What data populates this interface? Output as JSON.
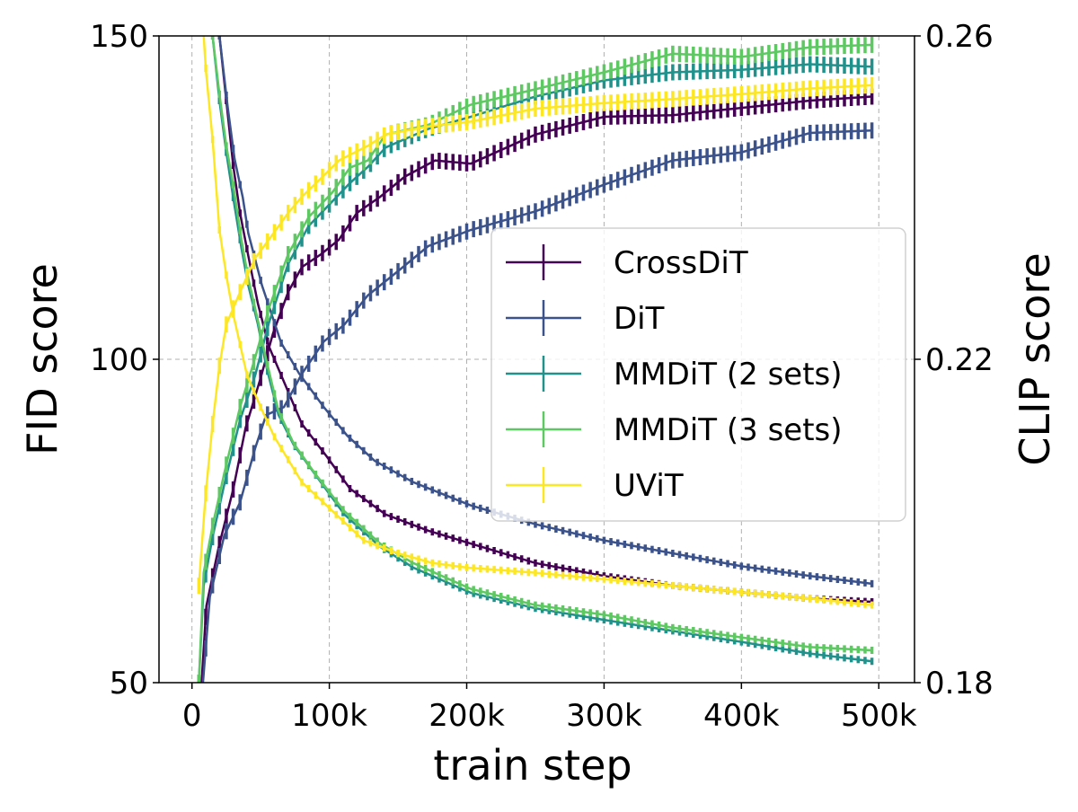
{
  "chart_data": {
    "type": "line",
    "title": "",
    "xlabel": "train step",
    "ylabel_left": "FID score",
    "ylabel_right": "CLIP score",
    "xlim": [
      -24000,
      526000
    ],
    "ylim_left": [
      50,
      150
    ],
    "ylim_right": [
      0.18,
      0.26
    ],
    "x_ticks": [
      0,
      100000,
      200000,
      300000,
      400000,
      500000
    ],
    "x_tick_labels": [
      "0",
      "100k",
      "200k",
      "300k",
      "400k",
      "500k"
    ],
    "y_left_ticks": [
      50,
      100,
      150
    ],
    "y_left_tick_labels": [
      "50",
      "100",
      "150"
    ],
    "y_right_ticks": [
      0.18,
      0.22,
      0.26
    ],
    "y_right_tick_labels": [
      "0.18",
      "0.22",
      "0.26"
    ],
    "grid": true,
    "error_bars": true,
    "legend_position": "center-right",
    "series": [
      {
        "name": "CrossDiT",
        "color": "#440154",
        "fid": {
          "x": [
            20,
            25,
            30,
            35,
            41,
            48,
            56,
            68,
            80,
            98,
            115,
            141,
            172,
            203,
            250,
            300,
            350,
            400,
            450,
            495
          ],
          "y": [
            150,
            140,
            130,
            122.6,
            116,
            108.6,
            102,
            96,
            90,
            85,
            80,
            76,
            73.5,
            71.5,
            68.5,
            66.5,
            65,
            64,
            63,
            62.5
          ]
        },
        "clip": {
          "x": [
            7,
            10.5,
            19.5,
            30,
            39,
            50,
            59,
            70,
            80,
            94,
            107,
            120,
            137,
            155,
            177,
            203,
            250,
            300,
            350,
            400,
            450,
            495
          ],
          "y": [
            0.18,
            0.1895,
            0.1968,
            0.2039,
            0.2115,
            0.2177,
            0.2232,
            0.2283,
            0.2314,
            0.233,
            0.2348,
            0.2381,
            0.2401,
            0.2426,
            0.2446,
            0.2442,
            0.2478,
            0.25,
            0.2502,
            0.2511,
            0.252,
            0.2525
          ]
        }
      },
      {
        "name": "DiT",
        "color": "#3b528b",
        "fid": {
          "x": [
            20,
            26,
            31,
            37,
            41,
            51,
            65,
            78,
            96,
            113,
            133,
            161,
            203,
            250,
            300,
            350,
            400,
            450,
            495
          ],
          "y": [
            150,
            139,
            131,
            125,
            119.5,
            111.4,
            102.5,
            97.8,
            92.6,
            88.2,
            84.3,
            81,
            77.4,
            74.5,
            72,
            70,
            68,
            66.5,
            65.3
          ]
        },
        "clip": {
          "x": [
            8,
            13,
            23.5,
            35,
            46,
            54,
            67,
            80,
            96,
            111,
            128,
            150,
            172,
            203,
            250,
            300,
            350,
            400,
            450,
            495
          ],
          "y": [
            0.18,
            0.1906,
            0.1982,
            0.2023,
            0.209,
            0.2131,
            0.2141,
            0.2182,
            0.2222,
            0.2243,
            0.2279,
            0.2309,
            0.234,
            0.236,
            0.2383,
            0.2416,
            0.2446,
            0.2456,
            0.248,
            0.2483
          ]
        }
      },
      {
        "name": "MMDiT (2 sets)",
        "color": "#21918c",
        "fid": {
          "x": [
            15,
            20,
            25,
            30,
            36,
            41,
            48,
            54,
            63,
            74,
            89,
            111,
            137,
            161,
            203,
            250,
            300,
            350,
            400,
            450,
            495
          ],
          "y": [
            150,
            140,
            132,
            125,
            117.2,
            111.4,
            105.4,
            99,
            91.4,
            86.8,
            82.4,
            76,
            71,
            67.8,
            63.9,
            61.5,
            59.7,
            58,
            56.3,
            54.5,
            53.3
          ]
        },
        "clip": {
          "x": [
            5,
            8.5,
            15,
            23.5,
            35,
            46,
            56,
            70,
            85,
            102,
            115,
            128,
            141,
            172,
            203,
            250,
            300,
            350,
            400,
            450,
            495
          ],
          "y": [
            0.18,
            0.192,
            0.198,
            0.2045,
            0.2125,
            0.218,
            0.2245,
            0.2318,
            0.2365,
            0.2395,
            0.2418,
            0.2438,
            0.2462,
            0.2485,
            0.25,
            0.2525,
            0.2545,
            0.2555,
            0.2558,
            0.2565,
            0.2562
          ]
        }
      },
      {
        "name": "MMDiT (3 sets)",
        "color": "#5ec962",
        "fid": {
          "x": [
            15,
            20,
            25,
            30,
            36,
            41,
            48,
            54,
            63,
            74,
            89,
            111,
            137,
            161,
            203,
            250,
            300,
            350,
            400,
            450,
            495
          ],
          "y": [
            150,
            141,
            133,
            127,
            118.5,
            112.5,
            106,
            100,
            92,
            87,
            82.5,
            76.5,
            71.5,
            68.5,
            64.5,
            62,
            60.5,
            58.5,
            57,
            55.5,
            55
          ]
        },
        "clip": {
          "x": [
            5,
            8.5,
            15,
            23.5,
            35,
            46,
            56,
            70,
            85,
            102,
            115,
            128,
            141,
            172,
            203,
            250,
            300,
            350,
            400,
            450,
            495
          ],
          "y": [
            0.18,
            0.1936,
            0.1994,
            0.2059,
            0.2141,
            0.2202,
            0.2263,
            0.233,
            0.2376,
            0.2406,
            0.2437,
            0.2446,
            0.2478,
            0.249,
            0.2515,
            0.2534,
            0.2555,
            0.2578,
            0.2574,
            0.2586,
            0.2589
          ]
        }
      },
      {
        "name": "UViT",
        "color": "#fde725",
        "fid": {
          "x": [
            8,
            10,
            15,
            20,
            25,
            30,
            40,
            50,
            60,
            80,
            100,
            125,
            150,
            175,
            200,
            250,
            300,
            350,
            400,
            450,
            495
          ],
          "y": [
            152,
            145,
            134,
            120,
            113,
            107,
            97.6,
            92.6,
            88,
            81,
            77,
            72,
            70,
            68.5,
            67.8,
            67,
            66,
            65,
            64,
            63,
            62
          ]
        },
        "clip": {
          "x": [
            5,
            10,
            15,
            20,
            25,
            35,
            46,
            59,
            70,
            80,
            94,
            107,
            128,
            141,
            172,
            203,
            250,
            300,
            350,
            400,
            450,
            495
          ],
          "y": [
            0.192,
            0.2034,
            0.212,
            0.2192,
            0.2243,
            0.2283,
            0.2325,
            0.2355,
            0.2381,
            0.2401,
            0.2424,
            0.2446,
            0.2464,
            0.2478,
            0.2488,
            0.2494,
            0.251,
            0.2517,
            0.2522,
            0.2528,
            0.2535,
            0.2539
          ]
        }
      }
    ]
  }
}
